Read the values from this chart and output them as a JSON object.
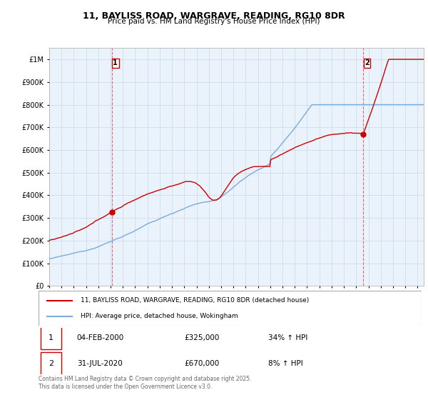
{
  "title_line1": "11, BAYLISS ROAD, WARGRAVE, READING, RG10 8DR",
  "title_line2": "Price paid vs. HM Land Registry's House Price Index (HPI)",
  "ylabel_vals": [
    0,
    100000,
    200000,
    300000,
    400000,
    500000,
    600000,
    700000,
    800000,
    900000,
    1000000
  ],
  "ylim": [
    0,
    1050000
  ],
  "xlim_start": 1995.0,
  "xlim_end": 2025.5,
  "sale1_date": 2000.09,
  "sale1_price": 325000,
  "sale2_date": 2020.58,
  "sale2_price": 670000,
  "vline_color": "#e06060",
  "red_line_color": "#cc0000",
  "blue_line_color": "#7aacdc",
  "chart_bg": "#eaf2fb",
  "legend_red_label": "11, BAYLISS ROAD, WARGRAVE, READING, RG10 8DR (detached house)",
  "legend_blue_label": "HPI: Average price, detached house, Wokingham",
  "table_row1": [
    "1",
    "04-FEB-2000",
    "£325,000",
    "34% ↑ HPI"
  ],
  "table_row2": [
    "2",
    "31-JUL-2020",
    "£670,000",
    "8% ↑ HPI"
  ],
  "footnote": "Contains HM Land Registry data © Crown copyright and database right 2025.\nThis data is licensed under the Open Government Licence v3.0.",
  "background_color": "#ffffff",
  "grid_color": "#c8d8e8"
}
